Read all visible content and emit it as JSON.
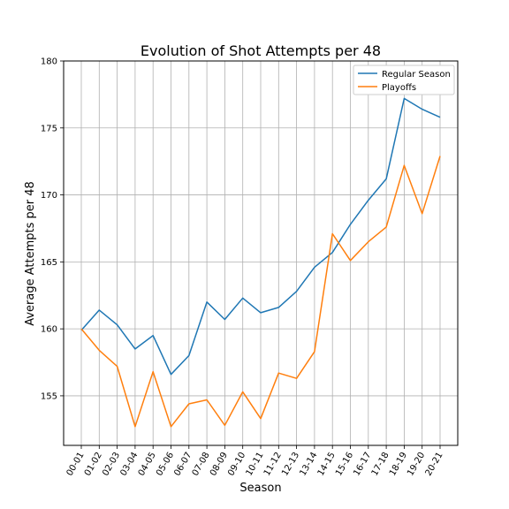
{
  "chart_data": {
    "type": "line",
    "title": "Evolution of Shot Attempts per 48",
    "xlabel": "Season",
    "ylabel": "Average Attempts per 48",
    "ylim": [
      151.3,
      180
    ],
    "yticks": [
      155,
      160,
      165,
      170,
      175,
      180
    ],
    "grid": true,
    "legend_position": "top-right",
    "categories": [
      "00-01",
      "01-02",
      "02-03",
      "03-04",
      "04-05",
      "05-06",
      "06-07",
      "07-08",
      "08-09",
      "09-10",
      "10-11",
      "11-12",
      "12-13",
      "13-14",
      "14-15",
      "15-16",
      "16-17",
      "17-18",
      "18-19",
      "19-20",
      "20-21"
    ],
    "series": [
      {
        "name": "Regular Season",
        "color": "#1f77b4",
        "values": [
          159.9,
          161.4,
          160.3,
          158.5,
          159.5,
          156.6,
          158.0,
          162.0,
          160.7,
          162.3,
          161.2,
          161.6,
          162.8,
          164.6,
          165.7,
          167.8,
          169.6,
          171.2,
          177.2,
          176.4,
          175.8
        ]
      },
      {
        "name": "Playoffs",
        "color": "#ff7f0e",
        "values": [
          160.0,
          158.4,
          157.2,
          152.7,
          156.8,
          152.7,
          154.4,
          154.7,
          152.8,
          155.3,
          153.3,
          156.7,
          156.3,
          158.3,
          167.1,
          165.1,
          166.5,
          167.6,
          172.2,
          168.6,
          172.9
        ]
      }
    ]
  }
}
